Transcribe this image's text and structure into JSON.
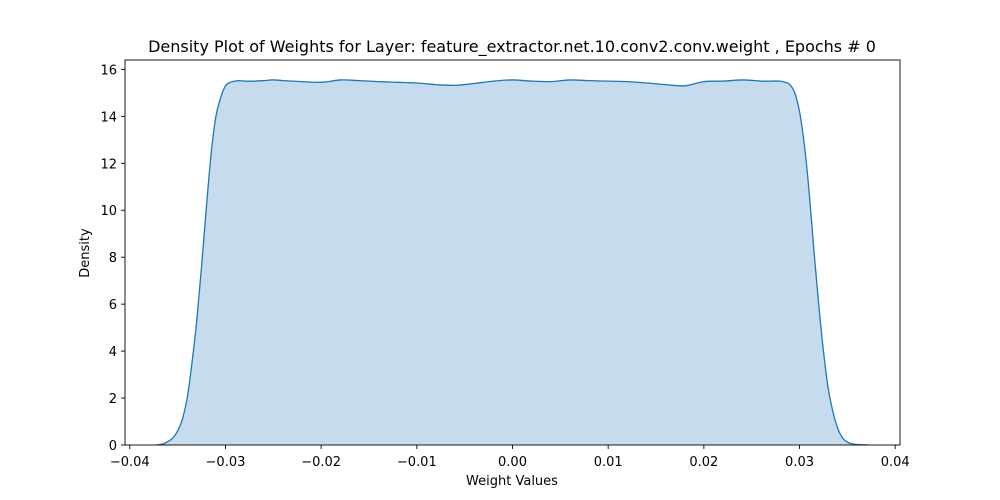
{
  "chart_data": {
    "type": "area",
    "title": "Density Plot of Weights for Layer: feature_extractor.net.10.conv2.conv.weight , Epochs # 0",
    "xlabel": "Weight Values",
    "ylabel": "Density",
    "xlim": [
      -0.0405,
      0.0405
    ],
    "ylim": [
      0,
      16.4
    ],
    "xticks": [
      -0.04,
      -0.03,
      -0.02,
      -0.01,
      0.0,
      0.01,
      0.02,
      0.03,
      0.04
    ],
    "xtick_labels": [
      "−0.04",
      "−0.03",
      "−0.02",
      "−0.01",
      "0.00",
      "0.01",
      "0.02",
      "0.03",
      "0.04"
    ],
    "yticks": [
      0,
      2,
      4,
      6,
      8,
      10,
      12,
      14,
      16
    ],
    "ytick_labels": [
      "0",
      "2",
      "4",
      "6",
      "8",
      "10",
      "12",
      "14",
      "16"
    ],
    "grid": false,
    "line_color": "#1f77b4",
    "fill_color": "#c6dbed",
    "series": [
      {
        "x": [
          -0.0372,
          -0.0365,
          -0.036,
          -0.0355,
          -0.035,
          -0.0345,
          -0.034,
          -0.0335,
          -0.033,
          -0.0325,
          -0.032,
          -0.0315,
          -0.031,
          -0.0305,
          -0.03,
          -0.0295,
          -0.029,
          -0.0285,
          -0.028,
          -0.027,
          -0.026,
          -0.025,
          -0.023,
          -0.02,
          -0.018,
          -0.016,
          -0.014,
          -0.012,
          -0.01,
          -0.008,
          -0.006,
          -0.004,
          -0.002,
          0.0,
          0.002,
          0.004,
          0.006,
          0.008,
          0.01,
          0.012,
          0.014,
          0.016,
          0.018,
          0.02,
          0.022,
          0.024,
          0.026,
          0.027,
          0.028,
          0.0285,
          0.029,
          0.0295,
          0.03,
          0.0305,
          0.031,
          0.0315,
          0.032,
          0.0325,
          0.033,
          0.0335,
          0.034,
          0.0345,
          0.035,
          0.0355,
          0.036,
          0.0365,
          0.0372
        ],
        "y": [
          0.0,
          0.05,
          0.15,
          0.3,
          0.6,
          1.1,
          2.0,
          3.5,
          5.3,
          7.6,
          10.1,
          12.4,
          14.0,
          14.8,
          15.3,
          15.45,
          15.5,
          15.52,
          15.5,
          15.5,
          15.52,
          15.55,
          15.5,
          15.45,
          15.55,
          15.52,
          15.48,
          15.45,
          15.42,
          15.35,
          15.32,
          15.4,
          15.5,
          15.55,
          15.5,
          15.48,
          15.55,
          15.52,
          15.5,
          15.48,
          15.42,
          15.35,
          15.3,
          15.48,
          15.5,
          15.55,
          15.5,
          15.5,
          15.5,
          15.45,
          15.35,
          15.0,
          14.2,
          12.8,
          10.8,
          8.3,
          6.0,
          4.0,
          2.4,
          1.4,
          0.7,
          0.3,
          0.12,
          0.05,
          0.02,
          0.01,
          0.0
        ]
      }
    ]
  }
}
